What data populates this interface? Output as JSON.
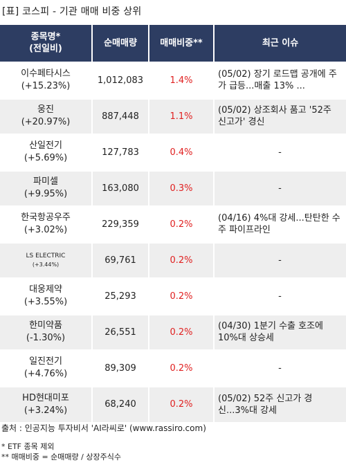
{
  "title": "[표] 코스피 - 기관 매매 비중 상위",
  "headers": {
    "name_line1": "종목명*",
    "name_line2": "(전일비)",
    "volume": "순매매량",
    "ratio": "매매비중**",
    "issue": "최근 이슈"
  },
  "rows": [
    {
      "name": "이수페타시스",
      "change": "(+15.23%)",
      "volume": "1,012,083",
      "ratio": "1.4%",
      "issue": "(05/02) 장기 로드맵 공개에 주가 급등...매출 13% ..."
    },
    {
      "name": "웅진",
      "change": "(+20.97%)",
      "volume": "887,448",
      "ratio": "1.1%",
      "issue": "(05/02) 상조회사 품고 '52주 신고가' 경신"
    },
    {
      "name": "산일전기",
      "change": "(+5.69%)",
      "volume": "127,783",
      "ratio": "0.4%",
      "issue": "-"
    },
    {
      "name": "파미셀",
      "change": "(+9.95%)",
      "volume": "163,080",
      "ratio": "0.3%",
      "issue": "-"
    },
    {
      "name": "한국항공우주",
      "change": "(+3.02%)",
      "volume": "229,359",
      "ratio": "0.2%",
      "issue": "(04/16) 4%대 강세...탄탄한 수주 파이프라인"
    },
    {
      "name": "LS ELECTRIC",
      "change": "(+3.44%)",
      "volume": "69,761",
      "ratio": "0.2%",
      "issue": "-"
    },
    {
      "name": "대웅제약",
      "change": "(+3.55%)",
      "volume": "25,293",
      "ratio": "0.2%",
      "issue": "-"
    },
    {
      "name": "한미약품",
      "change": "(-1.30%)",
      "volume": "26,551",
      "ratio": "0.2%",
      "issue": "(04/30) 1분기 수출 호조에 10%대 상승세"
    },
    {
      "name": "일진전기",
      "change": "(+4.76%)",
      "volume": "89,309",
      "ratio": "0.2%",
      "issue": "-"
    },
    {
      "name": "HD현대미포",
      "change": "(+3.24%)",
      "volume": "68,240",
      "ratio": "0.2%",
      "issue": "(05/02) 52주 신고가 경신...3%대 강세"
    }
  ],
  "footer": {
    "source": "출처 : 인공지능 투자비서 'AI라씨로' (www.rassiro.com)",
    "note1": "* ETF 종목 제외",
    "note2": "** 매매비중 = 순매매량 / 상장주식수"
  },
  "colors": {
    "header_bg": "#2d3d62",
    "ratio_text": "#e02020",
    "alt_row_bg": "#eeeeee"
  }
}
